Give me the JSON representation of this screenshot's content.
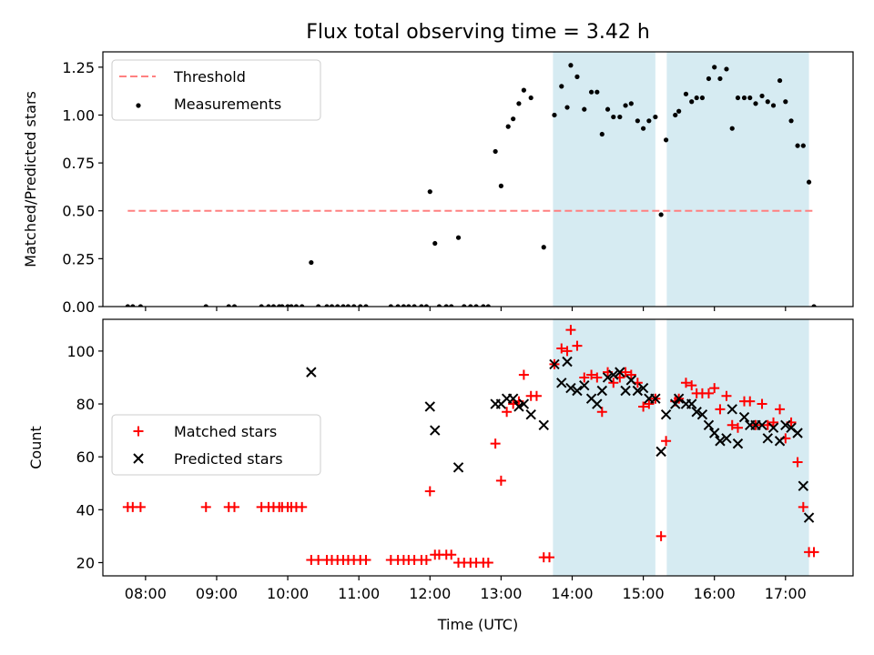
{
  "title": "Flux total observing time = 3.42 h",
  "chart_data": [
    {
      "type": "scatter",
      "ylabel": "Matched/Predicted stars",
      "xlabel": "",
      "xlim": [
        7.4,
        17.95
      ],
      "ylim": [
        0,
        1.33
      ],
      "yticks": [
        0.0,
        0.25,
        0.5,
        0.75,
        1.0,
        1.25
      ],
      "ytick_labels": [
        "0.00",
        "0.25",
        "0.50",
        "0.75",
        "1.00",
        "1.25"
      ],
      "shaded_intervals": [
        [
          13.73,
          15.17
        ],
        [
          15.33,
          17.33
        ]
      ],
      "threshold": {
        "name": "Threshold",
        "value": 0.5,
        "x_range": [
          7.75,
          17.4
        ],
        "color": "#ff8080"
      },
      "legend_position": "upper-left",
      "series": [
        {
          "name": "Measurements",
          "color": "#000000",
          "marker": "dot",
          "points": [
            [
              7.75,
              0
            ],
            [
              7.82,
              0
            ],
            [
              7.93,
              0
            ],
            [
              8.85,
              0
            ],
            [
              9.17,
              0
            ],
            [
              9.25,
              0
            ],
            [
              9.63,
              0
            ],
            [
              9.73,
              0
            ],
            [
              9.8,
              0
            ],
            [
              9.88,
              0
            ],
            [
              9.92,
              0
            ],
            [
              10.0,
              0
            ],
            [
              10.05,
              0
            ],
            [
              10.12,
              0
            ],
            [
              10.2,
              0
            ],
            [
              10.33,
              0.23
            ],
            [
              10.43,
              0
            ],
            [
              10.55,
              0
            ],
            [
              10.62,
              0
            ],
            [
              10.7,
              0
            ],
            [
              10.78,
              0
            ],
            [
              10.85,
              0
            ],
            [
              10.93,
              0
            ],
            [
              11.02,
              0
            ],
            [
              11.1,
              0
            ],
            [
              11.45,
              0
            ],
            [
              11.55,
              0
            ],
            [
              11.63,
              0
            ],
            [
              11.7,
              0
            ],
            [
              11.78,
              0
            ],
            [
              11.88,
              0
            ],
            [
              11.95,
              0
            ],
            [
              12.0,
              0.6
            ],
            [
              12.07,
              0.33
            ],
            [
              12.13,
              0
            ],
            [
              12.23,
              0
            ],
            [
              12.3,
              0
            ],
            [
              12.4,
              0.36
            ],
            [
              12.48,
              0
            ],
            [
              12.57,
              0
            ],
            [
              12.65,
              0
            ],
            [
              12.75,
              0
            ],
            [
              12.82,
              0
            ],
            [
              12.92,
              0.81
            ],
            [
              13.0,
              0.63
            ],
            [
              13.1,
              0.94
            ],
            [
              13.17,
              0.98
            ],
            [
              13.25,
              1.06
            ],
            [
              13.32,
              1.13
            ],
            [
              13.42,
              1.09
            ],
            [
              13.6,
              0.31
            ],
            [
              13.75,
              1.0
            ],
            [
              13.85,
              1.15
            ],
            [
              13.93,
              1.04
            ],
            [
              13.98,
              1.26
            ],
            [
              14.07,
              1.2
            ],
            [
              14.17,
              1.03
            ],
            [
              14.27,
              1.12
            ],
            [
              14.35,
              1.12
            ],
            [
              14.42,
              0.9
            ],
            [
              14.5,
              1.03
            ],
            [
              14.58,
              0.99
            ],
            [
              14.67,
              0.99
            ],
            [
              14.75,
              1.05
            ],
            [
              14.83,
              1.06
            ],
            [
              14.92,
              0.97
            ],
            [
              15.0,
              0.93
            ],
            [
              15.08,
              0.97
            ],
            [
              15.17,
              0.99
            ],
            [
              15.25,
              0.48
            ],
            [
              15.32,
              0.87
            ],
            [
              15.45,
              1.0
            ],
            [
              15.5,
              1.02
            ],
            [
              15.6,
              1.11
            ],
            [
              15.68,
              1.07
            ],
            [
              15.75,
              1.09
            ],
            [
              15.83,
              1.09
            ],
            [
              15.92,
              1.19
            ],
            [
              16.0,
              1.25
            ],
            [
              16.08,
              1.19
            ],
            [
              16.17,
              1.24
            ],
            [
              16.25,
              0.93
            ],
            [
              16.33,
              1.09
            ],
            [
              16.42,
              1.09
            ],
            [
              16.5,
              1.09
            ],
            [
              16.58,
              1.06
            ],
            [
              16.67,
              1.1
            ],
            [
              16.75,
              1.07
            ],
            [
              16.83,
              1.05
            ],
            [
              16.92,
              1.18
            ],
            [
              17.0,
              1.07
            ],
            [
              17.08,
              0.97
            ],
            [
              17.17,
              0.84
            ],
            [
              17.25,
              0.84
            ],
            [
              17.33,
              0.65
            ],
            [
              17.4,
              0
            ]
          ]
        }
      ]
    },
    {
      "type": "scatter",
      "ylabel": "Count",
      "xlabel": "Time (UTC)",
      "xlim": [
        7.4,
        17.95
      ],
      "ylim": [
        15,
        112
      ],
      "yticks": [
        20,
        40,
        60,
        80,
        100
      ],
      "ytick_labels": [
        "20",
        "40",
        "60",
        "80",
        "100"
      ],
      "xticks": [
        8,
        9,
        10,
        11,
        12,
        13,
        14,
        15,
        16,
        17
      ],
      "xtick_labels": [
        "08:00",
        "09:00",
        "10:00",
        "11:00",
        "12:00",
        "13:00",
        "14:00",
        "15:00",
        "16:00",
        "17:00"
      ],
      "shaded_intervals": [
        [
          13.73,
          15.17
        ],
        [
          15.33,
          17.33
        ]
      ],
      "legend_position": "center-left",
      "series": [
        {
          "name": "Matched stars",
          "color": "#ff0000",
          "marker": "plus",
          "points": [
            [
              7.75,
              41
            ],
            [
              7.82,
              41
            ],
            [
              7.93,
              41
            ],
            [
              8.85,
              41
            ],
            [
              9.17,
              41
            ],
            [
              9.25,
              41
            ],
            [
              9.63,
              41
            ],
            [
              9.73,
              41
            ],
            [
              9.8,
              41
            ],
            [
              9.88,
              41
            ],
            [
              9.92,
              41
            ],
            [
              10.0,
              41
            ],
            [
              10.05,
              41
            ],
            [
              10.12,
              41
            ],
            [
              10.2,
              41
            ],
            [
              10.33,
              21
            ],
            [
              10.43,
              21
            ],
            [
              10.55,
              21
            ],
            [
              10.62,
              21
            ],
            [
              10.7,
              21
            ],
            [
              10.78,
              21
            ],
            [
              10.85,
              21
            ],
            [
              10.93,
              21
            ],
            [
              11.02,
              21
            ],
            [
              11.1,
              21
            ],
            [
              11.45,
              21
            ],
            [
              11.55,
              21
            ],
            [
              11.63,
              21
            ],
            [
              11.7,
              21
            ],
            [
              11.78,
              21
            ],
            [
              11.88,
              21
            ],
            [
              11.95,
              21
            ],
            [
              12.0,
              47
            ],
            [
              12.07,
              23
            ],
            [
              12.13,
              23
            ],
            [
              12.23,
              23
            ],
            [
              12.3,
              23
            ],
            [
              12.4,
              20
            ],
            [
              12.48,
              20
            ],
            [
              12.57,
              20
            ],
            [
              12.65,
              20
            ],
            [
              12.75,
              20
            ],
            [
              12.82,
              20
            ],
            [
              12.92,
              65
            ],
            [
              13.0,
              51
            ],
            [
              13.08,
              77
            ],
            [
              13.17,
              80
            ],
            [
              13.25,
              81
            ],
            [
              13.32,
              91
            ],
            [
              13.42,
              83
            ],
            [
              13.5,
              83
            ],
            [
              13.6,
              22
            ],
            [
              13.68,
              22
            ],
            [
              13.75,
              95
            ],
            [
              13.85,
              101
            ],
            [
              13.93,
              100
            ],
            [
              13.98,
              108
            ],
            [
              14.07,
              102
            ],
            [
              14.17,
              90
            ],
            [
              14.27,
              91
            ],
            [
              14.35,
              90
            ],
            [
              14.42,
              77
            ],
            [
              14.5,
              92
            ],
            [
              14.58,
              88
            ],
            [
              14.67,
              90
            ],
            [
              14.75,
              92
            ],
            [
              14.83,
              91
            ],
            [
              14.92,
              88
            ],
            [
              15.0,
              79
            ],
            [
              15.08,
              80
            ],
            [
              15.17,
              82
            ],
            [
              15.25,
              30
            ],
            [
              15.32,
              66
            ],
            [
              15.45,
              81
            ],
            [
              15.5,
              82
            ],
            [
              15.6,
              88
            ],
            [
              15.68,
              87
            ],
            [
              15.75,
              84
            ],
            [
              15.83,
              84
            ],
            [
              15.92,
              84
            ],
            [
              16.0,
              86
            ],
            [
              16.08,
              78
            ],
            [
              16.17,
              83
            ],
            [
              16.25,
              72
            ],
            [
              16.33,
              71
            ],
            [
              16.42,
              81
            ],
            [
              16.5,
              81
            ],
            [
              16.58,
              72
            ],
            [
              16.67,
              80
            ],
            [
              16.75,
              72
            ],
            [
              16.83,
              73
            ],
            [
              16.92,
              78
            ],
            [
              17.0,
              67
            ],
            [
              17.08,
              73
            ],
            [
              17.17,
              58
            ],
            [
              17.25,
              41
            ],
            [
              17.33,
              24
            ],
            [
              17.4,
              24
            ]
          ]
        },
        {
          "name": "Predicted stars",
          "color": "#000000",
          "marker": "cross",
          "points": [
            [
              10.33,
              92
            ],
            [
              12.0,
              79
            ],
            [
              12.07,
              70
            ],
            [
              12.4,
              56
            ],
            [
              12.92,
              80
            ],
            [
              13.0,
              80
            ],
            [
              13.08,
              82
            ],
            [
              13.17,
              82
            ],
            [
              13.25,
              79
            ],
            [
              13.32,
              80
            ],
            [
              13.42,
              76
            ],
            [
              13.6,
              72
            ],
            [
              13.75,
              95
            ],
            [
              13.85,
              88
            ],
            [
              13.93,
              96
            ],
            [
              13.98,
              86
            ],
            [
              14.07,
              85
            ],
            [
              14.17,
              87
            ],
            [
              14.27,
              82
            ],
            [
              14.35,
              80
            ],
            [
              14.42,
              85
            ],
            [
              14.5,
              90
            ],
            [
              14.58,
              91
            ],
            [
              14.67,
              92
            ],
            [
              14.75,
              85
            ],
            [
              14.83,
              89
            ],
            [
              14.92,
              85
            ],
            [
              15.0,
              86
            ],
            [
              15.08,
              82
            ],
            [
              15.17,
              82
            ],
            [
              15.25,
              62
            ],
            [
              15.32,
              76
            ],
            [
              15.45,
              80
            ],
            [
              15.5,
              82
            ],
            [
              15.6,
              80
            ],
            [
              15.68,
              80
            ],
            [
              15.75,
              77
            ],
            [
              15.83,
              76
            ],
            [
              15.92,
              72
            ],
            [
              16.0,
              69
            ],
            [
              16.08,
              66
            ],
            [
              16.17,
              67
            ],
            [
              16.25,
              78
            ],
            [
              16.33,
              65
            ],
            [
              16.42,
              75
            ],
            [
              16.5,
              72
            ],
            [
              16.58,
              72
            ],
            [
              16.67,
              72
            ],
            [
              16.75,
              67
            ],
            [
              16.83,
              71
            ],
            [
              16.92,
              66
            ],
            [
              17.0,
              72
            ],
            [
              17.08,
              71
            ],
            [
              17.17,
              69
            ],
            [
              17.25,
              49
            ],
            [
              17.33,
              37
            ]
          ]
        }
      ]
    }
  ]
}
